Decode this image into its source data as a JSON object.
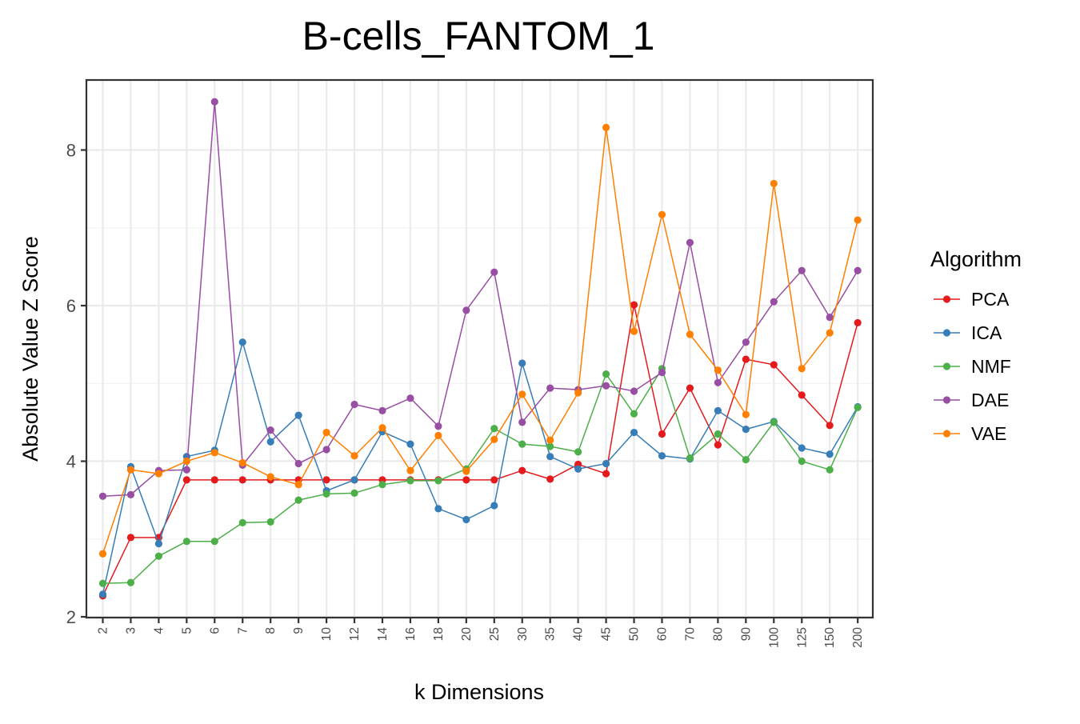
{
  "chart_data": {
    "type": "line",
    "title": "B-cells_FANTOM_1",
    "xlabel": "k Dimensions",
    "ylabel": "Absolute Value Z Score",
    "categories": [
      "2",
      "3",
      "4",
      "5",
      "6",
      "7",
      "8",
      "9",
      "10",
      "12",
      "14",
      "16",
      "18",
      "20",
      "25",
      "30",
      "35",
      "40",
      "45",
      "50",
      "60",
      "70",
      "80",
      "90",
      "100",
      "125",
      "150",
      "200"
    ],
    "ylim": [
      1.99,
      8.9
    ],
    "yticks": [
      "2",
      "4",
      "6",
      "8"
    ],
    "grid": true,
    "legend": {
      "title": "Algorithm",
      "position": "right"
    },
    "series": [
      {
        "name": "PCA",
        "color": "#E41A1C",
        "values": [
          2.27,
          3.02,
          3.02,
          3.76,
          3.76,
          3.76,
          3.76,
          3.76,
          3.76,
          3.76,
          3.76,
          3.76,
          3.76,
          3.76,
          3.76,
          3.88,
          3.77,
          3.96,
          3.84,
          6.01,
          4.35,
          4.94,
          4.21,
          5.31,
          5.24,
          4.85,
          4.46,
          5.78
        ]
      },
      {
        "name": "ICA",
        "color": "#377EB8",
        "values": [
          2.29,
          3.93,
          2.94,
          4.06,
          4.14,
          5.53,
          4.25,
          4.59,
          3.62,
          3.76,
          4.38,
          4.22,
          3.39,
          3.25,
          3.43,
          5.26,
          4.06,
          3.9,
          3.97,
          4.37,
          4.07,
          4.03,
          4.65,
          4.41,
          4.51,
          4.17,
          4.09,
          4.7
        ]
      },
      {
        "name": "NMF",
        "color": "#4DAF4A",
        "values": [
          2.43,
          2.44,
          2.78,
          2.97,
          2.97,
          3.21,
          3.22,
          3.5,
          3.58,
          3.59,
          3.7,
          3.75,
          3.75,
          3.9,
          4.42,
          4.22,
          4.19,
          4.12,
          5.12,
          4.61,
          5.19,
          4.04,
          4.35,
          4.02,
          4.5,
          4.0,
          3.89,
          4.69
        ]
      },
      {
        "name": "DAE",
        "color": "#984EA3",
        "values": [
          3.55,
          3.57,
          3.88,
          3.89,
          8.62,
          3.95,
          4.4,
          3.97,
          4.15,
          4.73,
          4.65,
          4.81,
          4.45,
          5.94,
          6.43,
          4.5,
          4.94,
          4.92,
          4.97,
          4.9,
          5.14,
          6.81,
          5.01,
          5.53,
          6.05,
          6.45,
          5.85,
          6.45
        ]
      },
      {
        "name": "VAE",
        "color": "#FF7F00",
        "values": [
          2.81,
          3.89,
          3.84,
          4.0,
          4.11,
          3.98,
          3.8,
          3.7,
          4.37,
          4.07,
          4.43,
          3.88,
          4.33,
          3.87,
          4.28,
          4.86,
          4.27,
          4.88,
          8.29,
          5.67,
          7.17,
          5.63,
          5.17,
          4.6,
          7.57,
          5.19,
          5.65,
          7.1
        ]
      }
    ]
  }
}
